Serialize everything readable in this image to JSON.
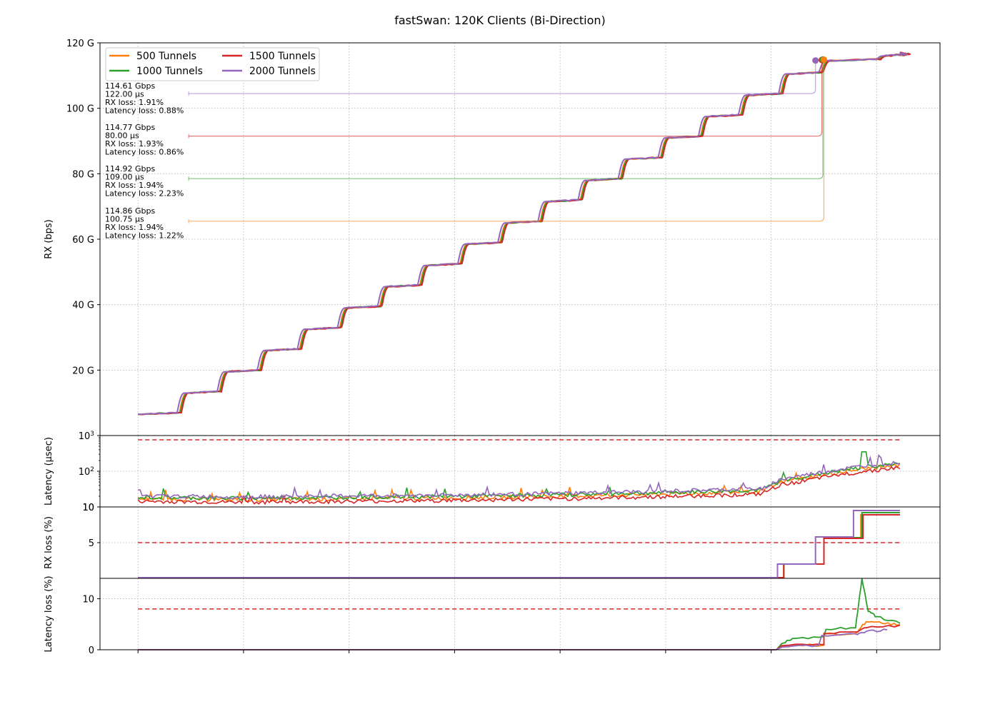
{
  "chart_data": {
    "type": "line",
    "title": "fastSwan: 120K Clients (Bi-Direction)",
    "x_range": [
      -0.36,
      7.6
    ],
    "x_ticks": [
      0,
      1,
      2,
      3,
      4,
      5,
      6,
      7
    ],
    "threshold_color": "#d62728",
    "grid": true,
    "legend_placement": "top-left",
    "series": [
      {
        "name": "500 Tunnels",
        "color": "#ff7f0e"
      },
      {
        "name": "1000 Tunnels",
        "color": "#2ca02c"
      },
      {
        "name": "1500 Tunnels",
        "color": "#d62728"
      },
      {
        "name": "2000 Tunnels",
        "color": "#9467bd"
      }
    ],
    "panels": [
      {
        "id": "rx",
        "ylabel": "RX (bps)",
        "scale": "linear",
        "ylim": [
          0,
          120
        ],
        "tick_values": [
          20,
          40,
          60,
          80,
          100,
          120
        ],
        "tick_labels": [
          "20 G",
          "40 G",
          "60 G",
          "80 G",
          "100 G",
          "120 G"
        ]
      },
      {
        "id": "latency",
        "ylabel": "Latency (µsec)",
        "scale": "log",
        "ylim": [
          10,
          1000
        ],
        "tick_values": [
          10,
          100,
          1000
        ],
        "tick_labels": [
          "10",
          "10²",
          "10³"
        ],
        "threshold": 1000
      },
      {
        "id": "rxloss",
        "ylabel": "RX loss (%)",
        "scale": "linear",
        "ylim": [
          0,
          10
        ],
        "tick_values": [
          5,
          10
        ],
        "tick_labels": [
          "5",
          "10"
        ],
        "threshold": 5
      },
      {
        "id": "latloss",
        "ylabel": "Latency loss (%)",
        "scale": "linear",
        "ylim": [
          0,
          14
        ],
        "tick_values": [
          0,
          10
        ],
        "tick_labels": [
          "0",
          "10"
        ],
        "threshold": 8
      }
    ],
    "rx_steps": [
      {
        "x": 0.0,
        "y": 6.5
      },
      {
        "x": 0.38,
        "y": 13
      },
      {
        "x": 0.76,
        "y": 19.5
      },
      {
        "x": 1.14,
        "y": 26
      },
      {
        "x": 1.52,
        "y": 32.5
      },
      {
        "x": 1.9,
        "y": 39
      },
      {
        "x": 2.28,
        "y": 45.5
      },
      {
        "x": 2.66,
        "y": 52
      },
      {
        "x": 3.04,
        "y": 58.5
      },
      {
        "x": 3.42,
        "y": 65
      },
      {
        "x": 3.8,
        "y": 71.5
      },
      {
        "x": 4.18,
        "y": 78
      },
      {
        "x": 4.56,
        "y": 84.5
      },
      {
        "x": 4.94,
        "y": 91
      },
      {
        "x": 5.32,
        "y": 97.5
      },
      {
        "x": 5.7,
        "y": 104
      },
      {
        "x": 6.08,
        "y": 110.5
      },
      {
        "x": 6.46,
        "y": 114.5
      },
      {
        "x": 7.0,
        "y": 116
      },
      {
        "x": 7.22,
        "y": 116.5
      }
    ],
    "latency_base": [
      {
        "x": 0.0,
        "y": 17
      },
      {
        "x": 1.0,
        "y": 16
      },
      {
        "x": 2.0,
        "y": 17
      },
      {
        "x": 3.0,
        "y": 18
      },
      {
        "x": 4.0,
        "y": 20
      },
      {
        "x": 5.0,
        "y": 23
      },
      {
        "x": 5.9,
        "y": 27
      },
      {
        "x": 6.1,
        "y": 50
      },
      {
        "x": 6.5,
        "y": 80
      },
      {
        "x": 6.9,
        "y": 120
      },
      {
        "x": 7.22,
        "y": 150
      }
    ],
    "rxloss_steps": [
      {
        "name": "500 Tunnels",
        "points": [
          {
            "x": 0,
            "y": 0
          },
          {
            "x": 6.12,
            "y": 0
          },
          {
            "x": 6.12,
            "y": 1.9
          },
          {
            "x": 6.5,
            "y": 1.9
          },
          {
            "x": 6.5,
            "y": 5.6
          },
          {
            "x": 6.85,
            "y": 5.6
          },
          {
            "x": 6.85,
            "y": 8.8
          },
          {
            "x": 7.22,
            "y": 8.8
          }
        ]
      },
      {
        "name": "1000 Tunnels",
        "points": [
          {
            "x": 0,
            "y": 0
          },
          {
            "x": 6.12,
            "y": 0
          },
          {
            "x": 6.12,
            "y": 1.9
          },
          {
            "x": 6.5,
            "y": 1.9
          },
          {
            "x": 6.5,
            "y": 5.6
          },
          {
            "x": 6.86,
            "y": 5.6
          },
          {
            "x": 6.86,
            "y": 9.1
          },
          {
            "x": 7.22,
            "y": 9.1
          }
        ]
      },
      {
        "name": "1500 Tunnels",
        "points": [
          {
            "x": 0,
            "y": 0
          },
          {
            "x": 6.12,
            "y": 0
          },
          {
            "x": 6.12,
            "y": 1.9
          },
          {
            "x": 6.5,
            "y": 1.9
          },
          {
            "x": 6.5,
            "y": 5.5
          },
          {
            "x": 6.87,
            "y": 5.5
          },
          {
            "x": 6.87,
            "y": 8.8
          },
          {
            "x": 7.22,
            "y": 8.8
          }
        ]
      },
      {
        "name": "2000 Tunnels",
        "points": [
          {
            "x": 0,
            "y": 0
          },
          {
            "x": 6.06,
            "y": 0
          },
          {
            "x": 6.06,
            "y": 1.9
          },
          {
            "x": 6.42,
            "y": 1.9
          },
          {
            "x": 6.42,
            "y": 5.7
          },
          {
            "x": 6.78,
            "y": 5.7
          },
          {
            "x": 6.78,
            "y": 9.4
          },
          {
            "x": 7.22,
            "y": 9.4
          }
        ]
      }
    ],
    "latloss_lines": [
      {
        "name": "500 Tunnels",
        "points": [
          {
            "x": 0,
            "y": 0
          },
          {
            "x": 6.05,
            "y": 0
          },
          {
            "x": 6.1,
            "y": 0.8
          },
          {
            "x": 6.5,
            "y": 0.9
          },
          {
            "x": 6.5,
            "y": 3.0
          },
          {
            "x": 6.8,
            "y": 3.2
          },
          {
            "x": 6.9,
            "y": 5.5
          },
          {
            "x": 7.05,
            "y": 5.2
          },
          {
            "x": 7.22,
            "y": 5.0
          }
        ]
      },
      {
        "name": "1000 Tunnels",
        "points": [
          {
            "x": 0,
            "y": 0
          },
          {
            "x": 6.05,
            "y": 0
          },
          {
            "x": 6.1,
            "y": 1.2
          },
          {
            "x": 6.2,
            "y": 2.2
          },
          {
            "x": 6.5,
            "y": 2.6
          },
          {
            "x": 6.52,
            "y": 4.0
          },
          {
            "x": 6.8,
            "y": 4.3
          },
          {
            "x": 6.86,
            "y": 14.0
          },
          {
            "x": 6.92,
            "y": 7.5
          },
          {
            "x": 7.0,
            "y": 6.5
          },
          {
            "x": 7.22,
            "y": 5.2
          }
        ]
      },
      {
        "name": "1500 Tunnels",
        "points": [
          {
            "x": 0,
            "y": 0
          },
          {
            "x": 6.05,
            "y": 0
          },
          {
            "x": 6.1,
            "y": 0.8
          },
          {
            "x": 6.5,
            "y": 1.0
          },
          {
            "x": 6.5,
            "y": 3.2
          },
          {
            "x": 6.8,
            "y": 3.5
          },
          {
            "x": 6.9,
            "y": 4.3
          },
          {
            "x": 7.22,
            "y": 4.8
          }
        ]
      },
      {
        "name": "2000 Tunnels",
        "points": [
          {
            "x": 0,
            "y": 0
          },
          {
            "x": 6.05,
            "y": 0
          },
          {
            "x": 6.1,
            "y": 0.5
          },
          {
            "x": 6.45,
            "y": 0.9
          },
          {
            "x": 6.48,
            "y": 2.8
          },
          {
            "x": 6.8,
            "y": 3.1
          },
          {
            "x": 6.9,
            "y": 3.6
          },
          {
            "x": 7.1,
            "y": 3.9
          }
        ]
      }
    ],
    "annotations": [
      {
        "series": "2000 Tunnels",
        "lines": [
          "114.61 Gbps",
          "122.00 µs",
          "RX loss: 1.91%",
          "Latency loss: 0.88%"
        ],
        "level": 104.5,
        "marker_x": 6.42,
        "marker_y": 114.61
      },
      {
        "series": "1500 Tunnels",
        "lines": [
          "114.77 Gbps",
          "80.00 µs",
          "RX loss: 1.93%",
          "Latency loss: 0.86%"
        ],
        "level": 91.5,
        "marker_x": 6.48,
        "marker_y": 114.77
      },
      {
        "series": "1000 Tunnels",
        "lines": [
          "114.92 Gbps",
          "109.00 µs",
          "RX loss: 1.94%",
          "Latency loss: 2.23%"
        ],
        "level": 78.5,
        "marker_x": 6.49,
        "marker_y": 114.92
      },
      {
        "series": "500 Tunnels",
        "lines": [
          "114.86 Gbps",
          "100.75 µs",
          "RX loss: 1.94%",
          "Latency loss: 1.22%"
        ],
        "level": 65.5,
        "marker_x": 6.5,
        "marker_y": 114.86
      }
    ]
  }
}
